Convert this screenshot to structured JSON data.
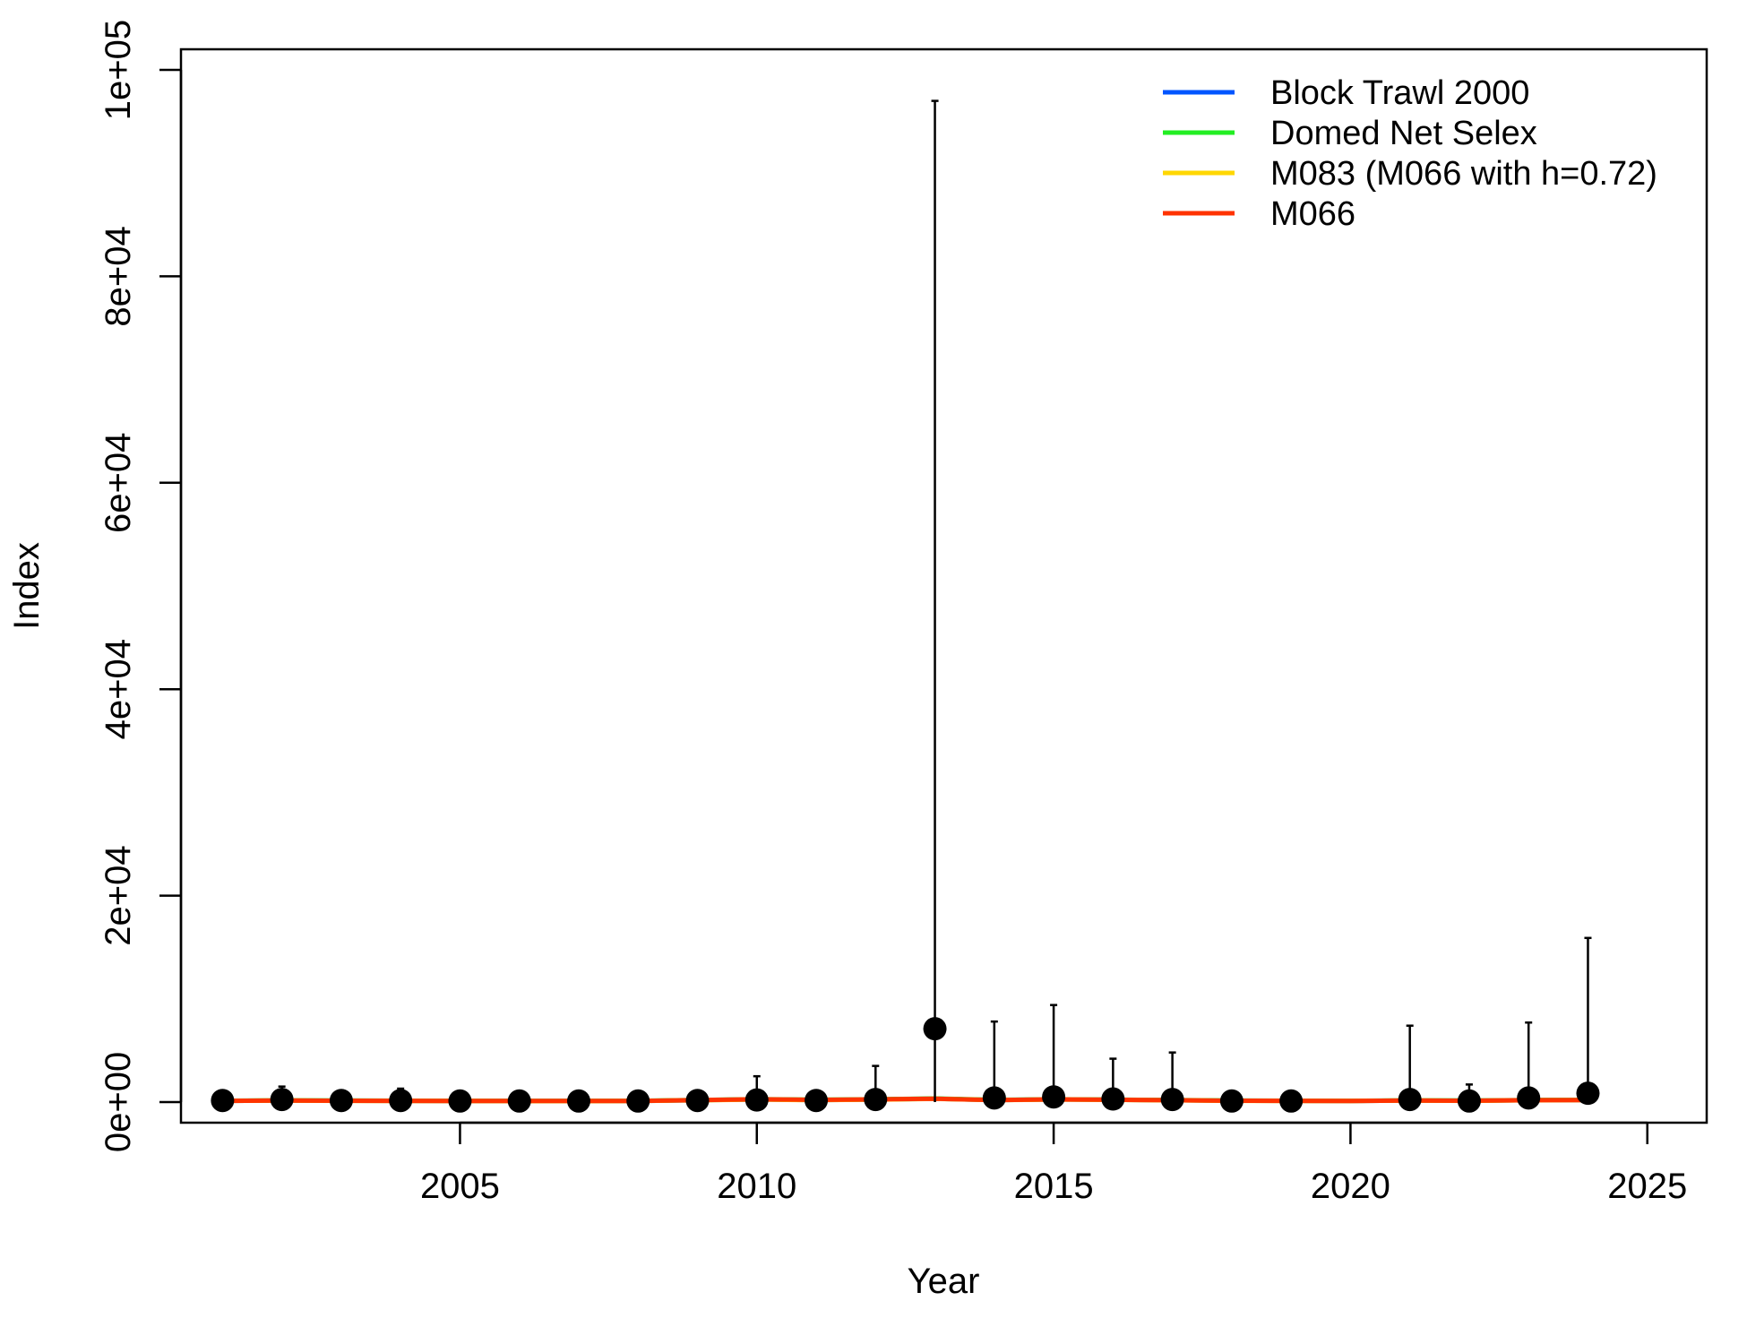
{
  "chart_data": {
    "type": "line",
    "title": "",
    "xlabel": "Year",
    "ylabel": "Index",
    "xlim": [
      2000.3,
      2026.0
    ],
    "ylim": [
      -2000,
      102000
    ],
    "xticks": [
      2005,
      2010,
      2015,
      2020,
      2025
    ],
    "xtick_labels": [
      "2005",
      "2010",
      "2015",
      "2020",
      "2025"
    ],
    "yticks": [
      0,
      20000,
      40000,
      60000,
      80000,
      100000
    ],
    "ytick_labels": [
      "0e+00",
      "2e+04",
      "4e+04",
      "6e+04",
      "8e+04",
      "1e+05"
    ],
    "grid": false,
    "legend_position": "top-right",
    "observed": {
      "x": [
        2001,
        2002,
        2003,
        2004,
        2005,
        2006,
        2007,
        2008,
        2009,
        2010,
        2011,
        2012,
        2013,
        2014,
        2015,
        2016,
        2017,
        2018,
        2019,
        2021,
        2022,
        2023,
        2024
      ],
      "y": [
        150,
        250,
        150,
        150,
        100,
        100,
        100,
        100,
        150,
        200,
        150,
        250,
        7100,
        400,
        500,
        300,
        250,
        100,
        100,
        250,
        100,
        400,
        850
      ],
      "upper": [
        900,
        1500,
        900,
        1300,
        800,
        800,
        800,
        800,
        900,
        2500,
        900,
        3500,
        97000,
        7800,
        9400,
        4200,
        4800,
        800,
        800,
        7400,
        1700,
        7700,
        15900
      ],
      "lower": [
        0,
        0,
        0,
        0,
        0,
        0,
        0,
        0,
        0,
        0,
        0,
        0,
        0,
        0,
        0,
        0,
        0,
        0,
        0,
        0,
        0,
        0,
        0
      ]
    },
    "series": [
      {
        "name": "Block Trawl 2000",
        "color": "#0055FF",
        "x": [
          2001,
          2002,
          2003,
          2004,
          2005,
          2006,
          2007,
          2008,
          2009,
          2010,
          2011,
          2012,
          2013,
          2014,
          2015,
          2016,
          2017,
          2018,
          2019,
          2020,
          2021,
          2022,
          2023,
          2024
        ],
        "values": [
          120,
          150,
          130,
          120,
          110,
          100,
          100,
          110,
          180,
          260,
          200,
          250,
          320,
          200,
          260,
          220,
          180,
          130,
          120,
          110,
          150,
          130,
          180,
          200
        ]
      },
      {
        "name": "Domed Net Selex",
        "color": "#22EE22",
        "x": [
          2001,
          2002,
          2003,
          2004,
          2005,
          2006,
          2007,
          2008,
          2009,
          2010,
          2011,
          2012,
          2013,
          2014,
          2015,
          2016,
          2017,
          2018,
          2019,
          2020,
          2021,
          2022,
          2023,
          2024
        ],
        "values": [
          130,
          160,
          140,
          130,
          120,
          110,
          110,
          120,
          200,
          280,
          220,
          270,
          340,
          210,
          270,
          230,
          190,
          140,
          130,
          120,
          160,
          140,
          190,
          210
        ]
      },
      {
        "name": "M083 (M066 with h=0.72)",
        "color": "#FFD700",
        "x": [
          2001,
          2002,
          2003,
          2004,
          2005,
          2006,
          2007,
          2008,
          2009,
          2010,
          2011,
          2012,
          2013,
          2014,
          2015,
          2016,
          2017,
          2018,
          2019,
          2020,
          2021,
          2022,
          2023,
          2024
        ],
        "values": [
          110,
          140,
          120,
          110,
          100,
          95,
          95,
          100,
          170,
          250,
          190,
          240,
          310,
          190,
          250,
          210,
          170,
          120,
          110,
          100,
          140,
          120,
          170,
          190
        ]
      },
      {
        "name": "M066",
        "color": "#FF3300",
        "x": [
          2001,
          2002,
          2003,
          2004,
          2005,
          2006,
          2007,
          2008,
          2009,
          2010,
          2011,
          2012,
          2013,
          2014,
          2015,
          2016,
          2017,
          2018,
          2019,
          2020,
          2021,
          2022,
          2023,
          2024
        ],
        "values": [
          120,
          150,
          130,
          120,
          110,
          100,
          100,
          110,
          190,
          270,
          210,
          260,
          330,
          200,
          260,
          220,
          180,
          130,
          120,
          110,
          150,
          130,
          180,
          200
        ]
      }
    ]
  }
}
